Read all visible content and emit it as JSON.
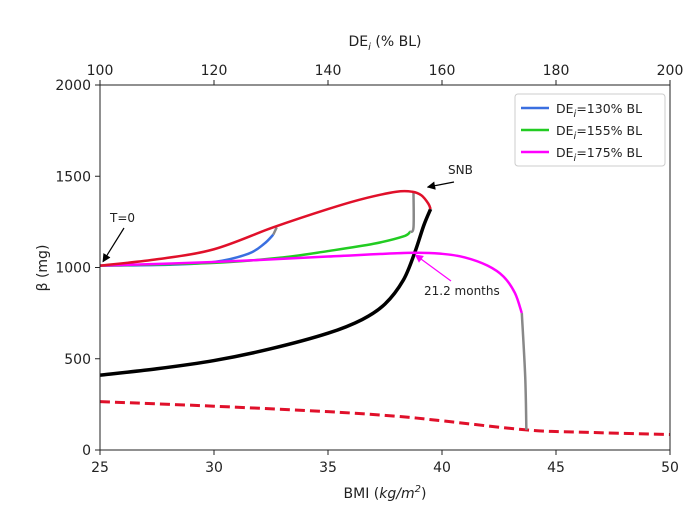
{
  "chart_data": {
    "type": "line",
    "xlabel": "BMI (kg/m²)",
    "xlabel_parts": {
      "prefix": "BMI (",
      "unit": "kg/m",
      "sup": "2",
      "suffix": ")"
    },
    "ylabel": "β (mg)",
    "top_xlabel": {
      "prefix": "DE",
      "sub": "i",
      "suffix": " (% BL)"
    },
    "xlim": [
      25,
      50
    ],
    "ylim": [
      0,
      2000
    ],
    "top_xlim": [
      100,
      200
    ],
    "xticks": [
      25,
      30,
      35,
      40,
      45,
      50
    ],
    "yticks": [
      0,
      500,
      1000,
      1500,
      2000
    ],
    "top_xticks": [
      100,
      120,
      140,
      160,
      180,
      200
    ],
    "grid": false,
    "legend_placement": "top-right",
    "legend": [
      {
        "prefix": "DE",
        "sub": "i",
        "suffix": "=130% BL",
        "color": "#3a6fe0"
      },
      {
        "prefix": "DE",
        "sub": "i",
        "suffix": "=155% BL",
        "color": "#22cc22"
      },
      {
        "prefix": "DE",
        "sub": "i",
        "suffix": "=175% BL",
        "color": "#ff00ff"
      }
    ],
    "series": [
      {
        "role": "stable-branch",
        "color": "#000000",
        "style": "solid",
        "x": [
          25,
          27.5,
          30,
          32.5,
          35,
          36.5,
          37.5,
          38.3,
          38.8,
          39.2,
          39.5
        ],
        "y": [
          410,
          445,
          490,
          555,
          640,
          715,
          800,
          930,
          1080,
          1230,
          1320
        ]
      },
      {
        "role": "unstable-upper-branch",
        "color": "#e0102a",
        "style": "solid",
        "x": [
          25,
          27.5,
          30,
          32.6,
          35,
          36.5,
          38,
          38.7,
          39.1,
          39.4,
          39.5
        ],
        "y": [
          1010,
          1045,
          1100,
          1220,
          1320,
          1375,
          1415,
          1415,
          1395,
          1350,
          1320
        ]
      },
      {
        "role": "lower-branch",
        "color": "#e0102a",
        "style": "dashed",
        "x": [
          25,
          30,
          35,
          38,
          40,
          43.7,
          46,
          50
        ],
        "y": [
          265,
          240,
          210,
          185,
          160,
          110,
          98,
          85
        ]
      },
      {
        "name": "DEi=130% BL",
        "color": "#3a6fe0",
        "style": "solid",
        "x": [
          25,
          28,
          30,
          31.5,
          32.2,
          32.6
        ],
        "y": [
          1010,
          1015,
          1030,
          1075,
          1130,
          1180
        ]
      },
      {
        "role": "transition-130",
        "color": "#888888",
        "style": "solid",
        "x": [
          32.6,
          32.75
        ],
        "y": [
          1180,
          1220
        ]
      },
      {
        "name": "DEi=155% BL",
        "color": "#22cc22",
        "style": "solid",
        "x": [
          25,
          30,
          33,
          35,
          37,
          38.3,
          38.6
        ],
        "y": [
          1010,
          1025,
          1055,
          1090,
          1130,
          1170,
          1195
        ]
      },
      {
        "role": "transition-155",
        "color": "#888888",
        "style": "solid",
        "x": [
          38.6,
          38.75,
          38.75
        ],
        "y": [
          1195,
          1220,
          1410
        ]
      },
      {
        "name": "DEi=175% BL",
        "color": "#ff00ff",
        "style": "solid",
        "x": [
          25,
          30,
          35,
          38.5,
          40,
          41,
          42,
          42.7,
          43.2,
          43.5
        ],
        "y": [
          1010,
          1030,
          1060,
          1080,
          1075,
          1055,
          1010,
          950,
          860,
          750
        ]
      },
      {
        "role": "transition-175",
        "color": "#888888",
        "style": "solid",
        "x": [
          43.5,
          43.65,
          43.7
        ],
        "y": [
          750,
          400,
          110
        ]
      }
    ],
    "annotations": [
      {
        "text": "T=0",
        "x": 25,
        "y": 1010,
        "color": "#000000"
      },
      {
        "text": "SNB",
        "x": 39.5,
        "y": 1320,
        "color": "#000000"
      },
      {
        "text": "21.2 months",
        "x": 38.7,
        "y": 1080,
        "color": "#ff00ff"
      }
    ]
  }
}
